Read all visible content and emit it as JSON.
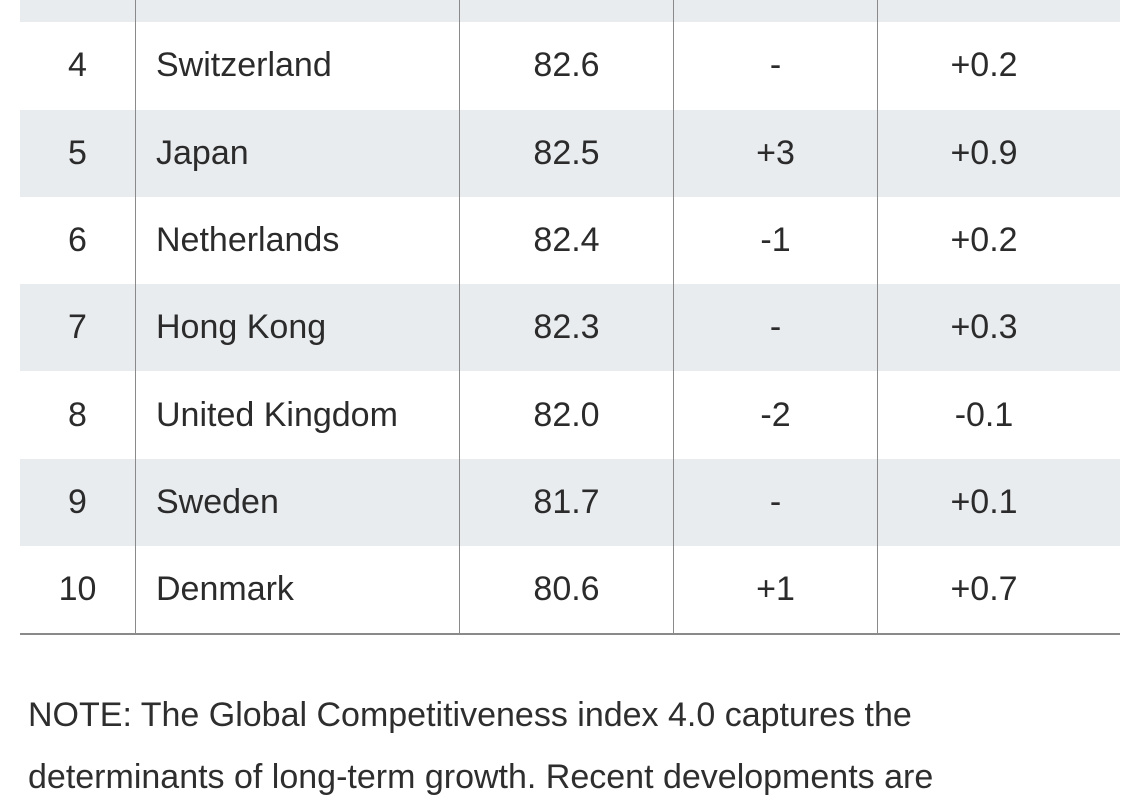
{
  "table": {
    "rows": [
      {
        "rank": "",
        "country": "",
        "score": "",
        "rank_change": "",
        "score_change": ""
      },
      {
        "rank": "4",
        "country": "Switzerland",
        "score": "82.6",
        "rank_change": "-",
        "score_change": "+0.2"
      },
      {
        "rank": "5",
        "country": "Japan",
        "score": "82.5",
        "rank_change": "+3",
        "score_change": "+0.9"
      },
      {
        "rank": "6",
        "country": "Netherlands",
        "score": "82.4",
        "rank_change": "-1",
        "score_change": "+0.2"
      },
      {
        "rank": "7",
        "country": "Hong Kong",
        "score": "82.3",
        "rank_change": "-",
        "score_change": "+0.3"
      },
      {
        "rank": "8",
        "country": "United Kingdom",
        "score": "82.0",
        "rank_change": "-2",
        "score_change": "-0.1"
      },
      {
        "rank": "9",
        "country": "Sweden",
        "score": "81.7",
        "rank_change": "-",
        "score_change": "+0.1"
      },
      {
        "rank": "10",
        "country": "Denmark",
        "score": "80.6",
        "rank_change": "+1",
        "score_change": "+0.7"
      }
    ],
    "shade_color": "#e9ecef"
  },
  "note": {
    "line1": "NOTE: The Global Competitiveness index 4.0 captures the",
    "line2": "determinants of long-term growth. Recent developments are"
  }
}
